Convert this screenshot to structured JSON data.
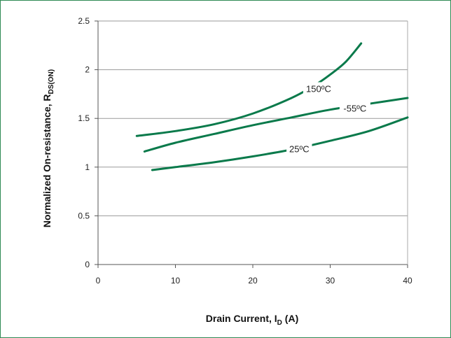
{
  "chart_data": {
    "type": "line",
    "xlabel": "Drain Current, I",
    "xlabel_sub": "D",
    "xlabel_unit": " (A)",
    "ylabel": "Normalized On-resistance, R",
    "ylabel_sub": "DS(ON)",
    "xlim": [
      0,
      40
    ],
    "ylim": [
      0,
      2.5
    ],
    "xticks": [
      0,
      10,
      20,
      30,
      40
    ],
    "yticks": [
      0,
      0.5,
      1,
      1.5,
      2,
      2.5
    ],
    "ytick_labels": [
      "0",
      "0.5",
      "1",
      "1.5",
      "2",
      "2.5"
    ],
    "grid": "horizontal",
    "line_color": "#0a7a4b",
    "series": [
      {
        "name": "150ºC",
        "x": [
          5,
          10,
          15,
          20,
          25,
          28,
          30,
          32,
          34
        ],
        "y": [
          1.32,
          1.37,
          1.44,
          1.55,
          1.71,
          1.84,
          1.95,
          2.08,
          2.27
        ]
      },
      {
        "name": "-55ºC",
        "x": [
          6,
          10,
          15,
          20,
          25,
          30,
          35,
          40
        ],
        "y": [
          1.16,
          1.25,
          1.34,
          1.43,
          1.51,
          1.59,
          1.65,
          1.71
        ]
      },
      {
        "name": "25ºC",
        "x": [
          7,
          10,
          15,
          20,
          25,
          30,
          35,
          40
        ],
        "y": [
          0.97,
          1.0,
          1.05,
          1.11,
          1.18,
          1.27,
          1.37,
          1.51
        ]
      }
    ],
    "labels": [
      {
        "series": 0,
        "text": "150ºC",
        "x": 28.5,
        "y": 1.8
      },
      {
        "series": 1,
        "text": "-55ºC",
        "x": 33.2,
        "y": 1.6
      },
      {
        "series": 2,
        "text": "25ºC",
        "x": 26.0,
        "y": 1.18
      }
    ]
  }
}
